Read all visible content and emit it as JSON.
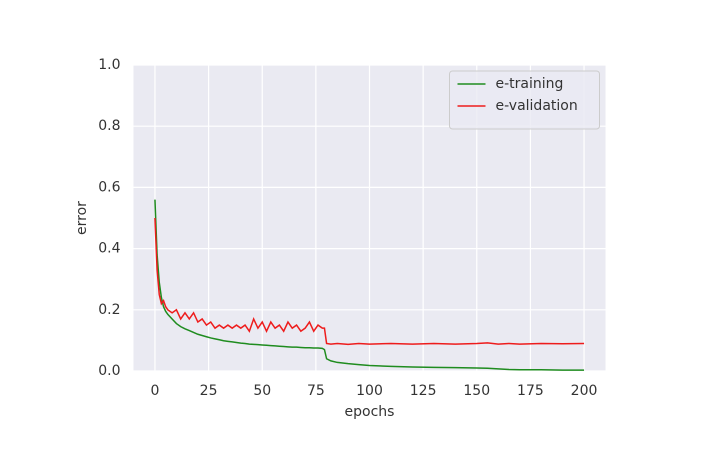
{
  "chart_data": {
    "type": "line",
    "x_label": "epochs",
    "y_label": "error",
    "x": [
      0,
      1,
      2,
      3,
      4,
      5,
      6,
      8,
      10,
      12,
      14,
      16,
      18,
      20,
      22,
      24,
      26,
      28,
      30,
      32,
      34,
      36,
      38,
      40,
      42,
      44,
      46,
      48,
      50,
      52,
      54,
      56,
      58,
      60,
      62,
      64,
      66,
      68,
      70,
      72,
      74,
      76,
      78,
      79,
      80,
      82,
      85,
      90,
      95,
      100,
      110,
      120,
      130,
      140,
      150,
      155,
      160,
      165,
      170,
      180,
      190,
      200
    ],
    "series": [
      {
        "name": "e-training",
        "color": "#1f8c1f",
        "values": [
          0.56,
          0.38,
          0.29,
          0.24,
          0.21,
          0.195,
          0.185,
          0.17,
          0.155,
          0.145,
          0.138,
          0.132,
          0.126,
          0.12,
          0.116,
          0.112,
          0.108,
          0.105,
          0.102,
          0.099,
          0.097,
          0.095,
          0.093,
          0.091,
          0.09,
          0.088,
          0.087,
          0.086,
          0.085,
          0.084,
          0.083,
          0.082,
          0.081,
          0.08,
          0.079,
          0.078,
          0.078,
          0.077,
          0.076,
          0.076,
          0.075,
          0.075,
          0.074,
          0.07,
          0.04,
          0.033,
          0.028,
          0.024,
          0.021,
          0.018,
          0.015,
          0.013,
          0.012,
          0.011,
          0.01,
          0.009,
          0.007,
          0.005,
          0.004,
          0.004,
          0.003,
          0.003
        ]
      },
      {
        "name": "e-validation",
        "color": "#ee1c1c",
        "values": [
          0.5,
          0.33,
          0.25,
          0.22,
          0.23,
          0.21,
          0.2,
          0.19,
          0.2,
          0.17,
          0.19,
          0.17,
          0.19,
          0.16,
          0.17,
          0.15,
          0.16,
          0.14,
          0.15,
          0.14,
          0.15,
          0.14,
          0.15,
          0.14,
          0.15,
          0.13,
          0.17,
          0.14,
          0.16,
          0.13,
          0.16,
          0.14,
          0.15,
          0.13,
          0.16,
          0.14,
          0.15,
          0.13,
          0.14,
          0.16,
          0.13,
          0.15,
          0.14,
          0.14,
          0.09,
          0.088,
          0.09,
          0.087,
          0.09,
          0.088,
          0.09,
          0.088,
          0.09,
          0.088,
          0.09,
          0.092,
          0.088,
          0.09,
          0.088,
          0.09,
          0.089,
          0.09
        ]
      }
    ],
    "xlim": [
      -10,
      210
    ],
    "ylim": [
      0,
      1
    ],
    "xticks": [
      0,
      25,
      50,
      75,
      100,
      125,
      150,
      175,
      200
    ],
    "yticks": [
      {
        "value": 0,
        "label": "0.0"
      },
      0.2,
      0.4,
      0.6,
      0.8,
      {
        "value": 1,
        "label": "1.0"
      }
    ],
    "grid": true,
    "legend": "upper right"
  }
}
